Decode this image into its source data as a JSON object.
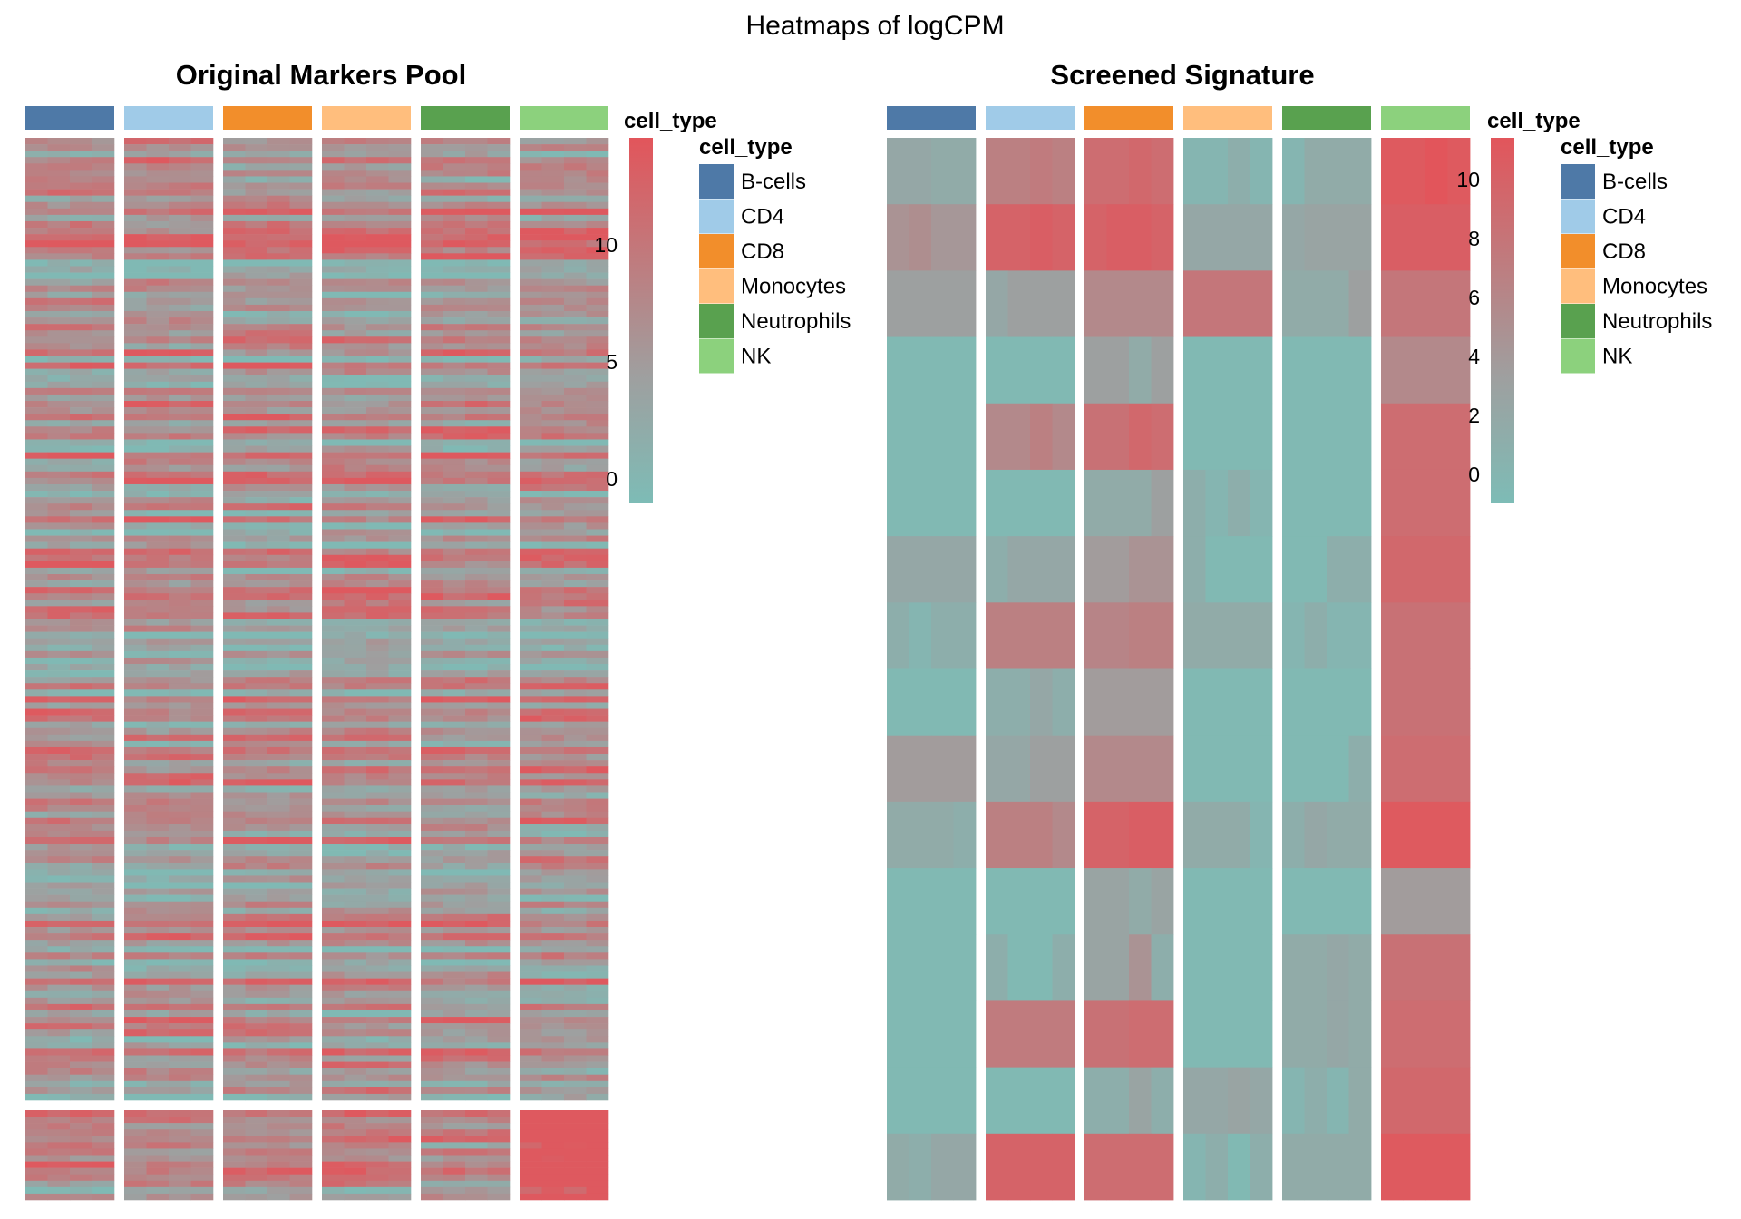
{
  "figure_title": "Heatmaps of logCPM",
  "colors": {
    "low": "#7dbcb6",
    "mid": "#9f9f9f",
    "high": "#e2555b"
  },
  "chart_data": [
    {
      "type": "heatmap",
      "title": "Original Markers Pool",
      "annotation_label": "cell_type",
      "groups": [
        {
          "name": "B-cells",
          "color": "#4e79a7",
          "samples": 4
        },
        {
          "name": "CD4",
          "color": "#a0cbe8",
          "samples": 4
        },
        {
          "name": "CD8",
          "color": "#f28e2b",
          "samples": 4
        },
        {
          "name": "Monocytes",
          "color": "#ffbe7d",
          "samples": 4
        },
        {
          "name": "Neutrophils",
          "color": "#59a14f",
          "samples": 4
        },
        {
          "name": "NK",
          "color": "#8cd17d",
          "samples": 4
        }
      ],
      "row_split": [
        150,
        14
      ],
      "value_range": [
        -0.5,
        13.5
      ],
      "legend": {
        "title": "cell_type",
        "ticks": [
          0,
          5,
          10
        ]
      },
      "legend_groups": {
        "title": "cell_type",
        "entries": [
          "B-cells",
          "CD4",
          "CD8",
          "Monocytes",
          "Neutrophils",
          "NK"
        ]
      },
      "values_note": "",
      "values": []
    },
    {
      "type": "heatmap",
      "title": "Screened Signature",
      "annotation_label": "cell_type",
      "groups": [
        {
          "name": "B-cells",
          "color": "#4e79a7",
          "samples": 4
        },
        {
          "name": "CD4",
          "color": "#a0cbe8",
          "samples": 4
        },
        {
          "name": "CD8",
          "color": "#f28e2b",
          "samples": 4
        },
        {
          "name": "Monocytes",
          "color": "#ffbe7d",
          "samples": 4
        },
        {
          "name": "Neutrophils",
          "color": "#59a14f",
          "samples": 4
        },
        {
          "name": "NK",
          "color": "#8cd17d",
          "samples": 4
        }
      ],
      "value_range": [
        -0.5,
        11.5
      ],
      "legend": {
        "title": "cell_type",
        "ticks": [
          0,
          2,
          4,
          6,
          8,
          10
        ]
      },
      "legend_groups": {
        "title": "cell_type",
        "entries": [
          "B-cells",
          "CD4",
          "CD8",
          "Monocytes",
          "Neutrophils",
          "NK"
        ]
      },
      "rows": [
        [
          2.5,
          2.5,
          2.0,
          2.0,
          7.0,
          7.0,
          7.5,
          7.0,
          9.0,
          9.0,
          9.5,
          9.0,
          0.5,
          0.5,
          1.5,
          0.5,
          0.5,
          2.0,
          2.0,
          2.0,
          11.0,
          11.0,
          11.5,
          11.0
        ],
        [
          5.0,
          5.5,
          4.5,
          4.5,
          10.0,
          10.0,
          10.5,
          10.0,
          10.0,
          10.5,
          10.5,
          10.0,
          2.5,
          2.5,
          2.5,
          2.5,
          2.5,
          3.0,
          3.0,
          3.0,
          10.5,
          10.5,
          10.5,
          10.5
        ],
        [
          3.5,
          3.5,
          3.5,
          3.5,
          2.5,
          3.5,
          3.5,
          3.5,
          6.0,
          6.0,
          6.0,
          6.0,
          8.0,
          8.0,
          8.0,
          8.0,
          2.0,
          2.0,
          2.0,
          3.5,
          8.0,
          8.0,
          8.0,
          8.0
        ],
        [
          0.0,
          0.0,
          0.0,
          0.0,
          0.0,
          0.0,
          0.0,
          0.0,
          3.5,
          3.5,
          2.0,
          3.5,
          0.0,
          0.0,
          0.0,
          0.0,
          0.0,
          0.0,
          0.0,
          0.0,
          6.0,
          6.0,
          6.0,
          6.0
        ],
        [
          0.0,
          0.0,
          0.0,
          0.0,
          6.0,
          6.0,
          7.0,
          6.0,
          8.5,
          8.5,
          9.5,
          9.0,
          0.0,
          0.0,
          0.0,
          0.0,
          0.0,
          0.0,
          0.0,
          0.0,
          9.0,
          9.0,
          9.0,
          9.0
        ],
        [
          0.0,
          0.0,
          0.0,
          0.0,
          0.0,
          0.0,
          0.0,
          0.0,
          2.0,
          2.0,
          2.0,
          3.5,
          1.5,
          0.5,
          1.5,
          0.5,
          0.0,
          0.0,
          0.0,
          0.0,
          9.0,
          9.0,
          9.0,
          9.0
        ],
        [
          2.5,
          2.5,
          2.5,
          2.5,
          1.5,
          2.5,
          2.5,
          2.5,
          4.0,
          4.0,
          5.0,
          5.0,
          1.5,
          0.0,
          0.0,
          0.0,
          0.0,
          0.0,
          1.5,
          1.5,
          9.5,
          9.5,
          9.5,
          9.5
        ],
        [
          1.5,
          0.5,
          1.5,
          1.5,
          7.0,
          7.0,
          7.0,
          7.0,
          6.5,
          6.5,
          7.0,
          7.0,
          2.0,
          2.0,
          2.0,
          2.0,
          0.5,
          1.5,
          0.5,
          0.5,
          8.5,
          8.5,
          8.5,
          8.5
        ],
        [
          0.0,
          0.0,
          0.0,
          0.0,
          1.5,
          1.5,
          2.5,
          1.5,
          4.0,
          4.0,
          4.0,
          4.0,
          0.0,
          0.0,
          0.0,
          0.0,
          0.0,
          0.0,
          0.0,
          0.0,
          8.5,
          8.5,
          8.5,
          8.5
        ],
        [
          4.0,
          4.0,
          4.0,
          4.0,
          2.5,
          2.5,
          3.5,
          3.5,
          6.0,
          6.0,
          6.0,
          6.0,
          0.0,
          0.0,
          0.0,
          0.0,
          0.0,
          0.0,
          0.0,
          1.5,
          9.0,
          9.0,
          9.0,
          9.0
        ],
        [
          2.0,
          2.0,
          2.0,
          1.5,
          7.0,
          7.0,
          7.0,
          6.0,
          10.0,
          10.0,
          10.5,
          10.5,
          2.0,
          2.0,
          2.0,
          0.5,
          1.5,
          2.5,
          2.0,
          2.0,
          11.0,
          11.0,
          11.0,
          11.0
        ],
        [
          0.0,
          0.0,
          0.0,
          0.0,
          0.0,
          0.0,
          0.0,
          0.0,
          3.0,
          3.0,
          2.0,
          3.0,
          0.0,
          0.0,
          0.0,
          0.0,
          0.0,
          0.0,
          0.0,
          0.0,
          4.0,
          4.0,
          4.0,
          4.0
        ],
        [
          0.0,
          0.0,
          0.0,
          0.0,
          1.5,
          0.0,
          0.0,
          1.5,
          3.0,
          3.0,
          5.0,
          1.5,
          0.0,
          0.0,
          0.0,
          0.0,
          2.0,
          2.0,
          2.5,
          2.0,
          8.5,
          8.5,
          8.5,
          8.5
        ],
        [
          0.0,
          0.0,
          0.0,
          0.0,
          7.5,
          7.5,
          7.5,
          7.5,
          8.5,
          8.5,
          9.0,
          9.0,
          0.0,
          0.0,
          0.0,
          0.0,
          2.0,
          2.0,
          2.5,
          2.0,
          9.0,
          9.0,
          9.0,
          9.0
        ],
        [
          0.0,
          0.0,
          0.0,
          0.0,
          0.0,
          0.0,
          0.0,
          0.0,
          1.5,
          1.5,
          3.0,
          1.5,
          2.5,
          2.5,
          3.0,
          2.5,
          0.5,
          1.5,
          0.5,
          2.0,
          9.5,
          9.5,
          9.5,
          9.5
        ],
        [
          2.0,
          1.5,
          2.5,
          2.5,
          10.0,
          10.0,
          10.0,
          10.0,
          9.0,
          9.0,
          9.0,
          9.0,
          0.5,
          1.5,
          0.0,
          1.5,
          2.0,
          2.0,
          2.0,
          2.0,
          11.0,
          11.0,
          11.0,
          11.0
        ]
      ]
    }
  ]
}
